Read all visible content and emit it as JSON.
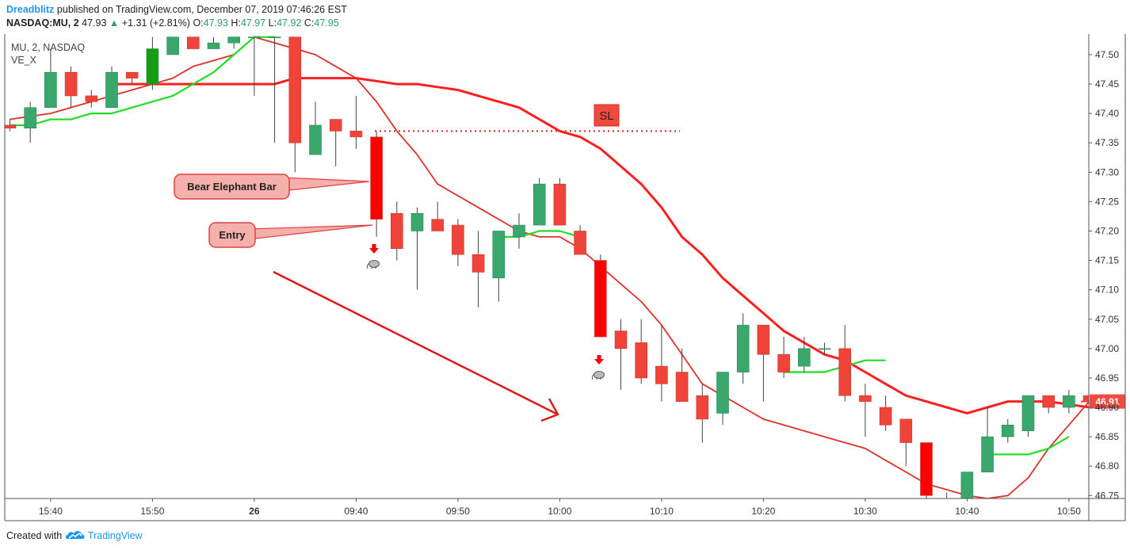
{
  "header": {
    "author": "Dreadblitz",
    "published": "published on TradingView.com, December 07, 2019 07:46:26 EST"
  },
  "symbol_line": {
    "symbol": "NASDAQ:MU, 2",
    "last": "47.93",
    "change": "+1.31 (+2.81%)",
    "o_label": "O:",
    "o_value": "47.93",
    "h_label": "H:",
    "h_value": "47.97",
    "l_label": "L:",
    "l_value": "47.92",
    "c_label": "C:",
    "c_value": "47.95"
  },
  "legend": {
    "title": "MU, 2, NASDAQ",
    "indicator": "VE_X"
  },
  "footer": {
    "created_with": "Created with",
    "brand": "TradingView"
  },
  "colors": {
    "up": "#3aa76d",
    "up_strong": "#12a012",
    "down": "#f0433a",
    "down_strong": "#ff0000",
    "ema_fast": "#e0302a",
    "ema_slow": "#ff1f1f",
    "green_line": "#22dd22",
    "accent": "#2196f3"
  },
  "chart_data": {
    "type": "candlestick",
    "ylim": [
      46.745,
      47.535
    ],
    "y_ticks": [
      "47.50",
      "47.45",
      "47.40",
      "47.35",
      "47.30",
      "47.25",
      "47.20",
      "47.15",
      "47.10",
      "47.05",
      "47.00",
      "46.95",
      "46.90",
      "46.85",
      "46.80",
      "46.75"
    ],
    "x_ticks": [
      {
        "slot": 2,
        "label": "15:40"
      },
      {
        "slot": 7,
        "label": "15:50"
      },
      {
        "slot": 12,
        "label": "26"
      },
      {
        "slot": 17,
        "label": "09:40"
      },
      {
        "slot": 22,
        "label": "09:50"
      },
      {
        "slot": 27,
        "label": "10:00"
      },
      {
        "slot": 32,
        "label": "10:10"
      },
      {
        "slot": 37,
        "label": "10:20"
      },
      {
        "slot": 42,
        "label": "10:30"
      },
      {
        "slot": 47,
        "label": "10:40"
      },
      {
        "slot": 52,
        "label": "10:50"
      }
    ],
    "candles": [
      {
        "o": 47.38,
        "h": 47.39,
        "l": 47.37,
        "c": 47.375
      },
      {
        "o": 47.375,
        "h": 47.42,
        "l": 47.35,
        "c": 47.41
      },
      {
        "o": 47.41,
        "h": 47.51,
        "l": 47.41,
        "c": 47.47
      },
      {
        "o": 47.47,
        "h": 47.48,
        "l": 47.41,
        "c": 47.43
      },
      {
        "o": 47.43,
        "h": 47.44,
        "l": 47.41,
        "c": 47.42
      },
      {
        "o": 47.41,
        "h": 47.48,
        "l": 47.41,
        "c": 47.47
      },
      {
        "o": 47.47,
        "h": 47.47,
        "l": 47.45,
        "c": 47.46
      },
      {
        "o": 47.45,
        "h": 47.53,
        "l": 47.44,
        "c": 47.51,
        "strong": true
      },
      {
        "o": 47.5,
        "h": 47.53,
        "l": 47.5,
        "c": 47.53
      },
      {
        "o": 47.53,
        "h": 47.53,
        "l": 47.51,
        "c": 47.51
      },
      {
        "o": 47.51,
        "h": 47.53,
        "l": 47.51,
        "c": 47.52
      },
      {
        "o": 47.52,
        "h": 47.53,
        "l": 47.51,
        "c": 47.53
      },
      {
        "o": 47.53,
        "h": 47.53,
        "l": 47.43,
        "c": 47.53
      },
      {
        "o": 47.53,
        "h": 47.53,
        "l": 47.35,
        "c": 47.53
      },
      {
        "o": 47.53,
        "h": 47.53,
        "l": 47.3,
        "c": 47.35
      },
      {
        "o": 47.33,
        "h": 47.42,
        "l": 47.33,
        "c": 47.38
      },
      {
        "o": 47.39,
        "h": 47.39,
        "l": 47.31,
        "c": 47.37
      },
      {
        "o": 47.37,
        "h": 47.43,
        "l": 47.34,
        "c": 47.36
      },
      {
        "o": 47.36,
        "h": 47.37,
        "l": 47.19,
        "c": 47.22,
        "strong": true
      },
      {
        "o": 47.23,
        "h": 47.25,
        "l": 47.15,
        "c": 47.17
      },
      {
        "o": 47.2,
        "h": 47.24,
        "l": 47.1,
        "c": 47.23
      },
      {
        "o": 47.22,
        "h": 47.25,
        "l": 47.2,
        "c": 47.2
      },
      {
        "o": 47.21,
        "h": 47.22,
        "l": 47.14,
        "c": 47.16
      },
      {
        "o": 47.16,
        "h": 47.2,
        "l": 47.07,
        "c": 47.13
      },
      {
        "o": 47.12,
        "h": 47.2,
        "l": 47.08,
        "c": 47.2
      },
      {
        "o": 47.19,
        "h": 47.23,
        "l": 47.17,
        "c": 47.21
      },
      {
        "o": 47.21,
        "h": 47.29,
        "l": 47.21,
        "c": 47.28
      },
      {
        "o": 47.28,
        "h": 47.29,
        "l": 47.21,
        "c": 47.21
      },
      {
        "o": 47.2,
        "h": 47.21,
        "l": 47.16,
        "c": 47.16
      },
      {
        "o": 47.15,
        "h": 47.16,
        "l": 47.02,
        "c": 47.02,
        "strong": true
      },
      {
        "o": 47.03,
        "h": 47.05,
        "l": 46.93,
        "c": 47.0
      },
      {
        "o": 47.01,
        "h": 47.05,
        "l": 46.94,
        "c": 46.95
      },
      {
        "o": 46.97,
        "h": 47.04,
        "l": 46.91,
        "c": 46.94
      },
      {
        "o": 46.96,
        "h": 47.0,
        "l": 46.91,
        "c": 46.91
      },
      {
        "o": 46.92,
        "h": 46.94,
        "l": 46.84,
        "c": 46.88
      },
      {
        "o": 46.89,
        "h": 46.96,
        "l": 46.87,
        "c": 46.96
      },
      {
        "o": 46.96,
        "h": 47.06,
        "l": 46.94,
        "c": 47.04
      },
      {
        "o": 47.04,
        "h": 47.04,
        "l": 46.91,
        "c": 46.99
      },
      {
        "o": 46.99,
        "h": 47.02,
        "l": 46.95,
        "c": 46.96
      },
      {
        "o": 46.97,
        "h": 47.02,
        "l": 46.96,
        "c": 47.0
      },
      {
        "o": 47.0,
        "h": 47.01,
        "l": 46.99,
        "c": 47.0
      },
      {
        "o": 47.0,
        "h": 47.04,
        "l": 46.91,
        "c": 46.92
      },
      {
        "o": 46.92,
        "h": 46.94,
        "l": 46.85,
        "c": 46.91
      },
      {
        "o": 46.9,
        "h": 46.92,
        "l": 46.86,
        "c": 46.87
      },
      {
        "o": 46.88,
        "h": 46.88,
        "l": 46.8,
        "c": 46.84
      },
      {
        "o": 46.84,
        "h": 46.84,
        "l": 46.745,
        "c": 46.75,
        "strong": true
      },
      {
        "o": 46.745,
        "h": 46.755,
        "l": 46.745,
        "c": 46.745
      },
      {
        "o": 46.745,
        "h": 46.79,
        "l": 46.745,
        "c": 46.79
      },
      {
        "o": 46.79,
        "h": 46.9,
        "l": 46.79,
        "c": 46.85
      },
      {
        "o": 46.85,
        "h": 46.88,
        "l": 46.84,
        "c": 46.87
      },
      {
        "o": 46.86,
        "h": 46.92,
        "l": 46.85,
        "c": 46.92
      },
      {
        "o": 46.92,
        "h": 46.92,
        "l": 46.89,
        "c": 46.9
      },
      {
        "o": 46.9,
        "h": 46.93,
        "l": 46.89,
        "c": 46.92
      },
      {
        "o": 46.92,
        "h": 46.92,
        "l": 46.91,
        "c": 46.91
      }
    ],
    "ema_fast": [
      47.39,
      47.395,
      47.4,
      47.41,
      47.42,
      47.43,
      47.44,
      47.45,
      47.46,
      47.48,
      47.49,
      47.5,
      47.53,
      47.52,
      47.51,
      47.5,
      47.48,
      47.46,
      47.42,
      47.37,
      47.33,
      47.28,
      47.26,
      47.24,
      47.22,
      47.2,
      47.19,
      47.19,
      47.17,
      47.14,
      47.11,
      47.08,
      47.04,
      46.99,
      46.94,
      46.92,
      46.9,
      46.88,
      46.87,
      46.86,
      46.85,
      46.84,
      46.83,
      46.81,
      46.79,
      46.77,
      46.76,
      46.75,
      46.745,
      46.75,
      46.78,
      46.83,
      46.87,
      46.91
    ],
    "ema_slow": [
      47.45,
      47.45,
      47.45,
      47.45,
      47.45,
      47.45,
      47.45,
      47.45,
      47.45,
      47.46,
      47.46,
      47.46,
      47.46,
      47.455,
      47.45,
      47.45,
      47.445,
      47.44,
      47.43,
      47.42,
      47.41,
      47.39,
      47.37,
      47.36,
      47.34,
      47.31,
      47.28,
      47.24,
      47.19,
      47.16,
      47.12,
      47.09,
      47.06,
      47.03,
      47.01,
      46.99,
      46.98,
      46.96,
      46.94,
      46.92,
      46.91,
      46.9,
      46.89,
      46.9,
      46.91,
      46.91,
      46.91,
      46.905,
      46.9
    ],
    "green_line": [
      47.38,
      47.38,
      47.39,
      47.39,
      47.4,
      47.4,
      47.41,
      47.42,
      47.43,
      47.45,
      47.47,
      47.5,
      47.53,
      47.53
    ],
    "green_line_2": [
      47.19,
      47.19,
      47.2,
      47.2,
      47.19
    ],
    "green_line_3": [
      46.96,
      46.96,
      46.96,
      46.97,
      46.98,
      46.98
    ],
    "green_line_4": [
      46.82,
      46.82,
      46.82,
      46.83,
      46.85
    ],
    "sl_level": 47.37,
    "last_price_label": "46.91",
    "annotations": [
      {
        "name": "stop-loss-label",
        "text": "SL"
      },
      {
        "name": "bear-elephant-callout",
        "text": "Bear Elephant Bar"
      },
      {
        "name": "entry-callout",
        "text": "Entry"
      }
    ]
  }
}
